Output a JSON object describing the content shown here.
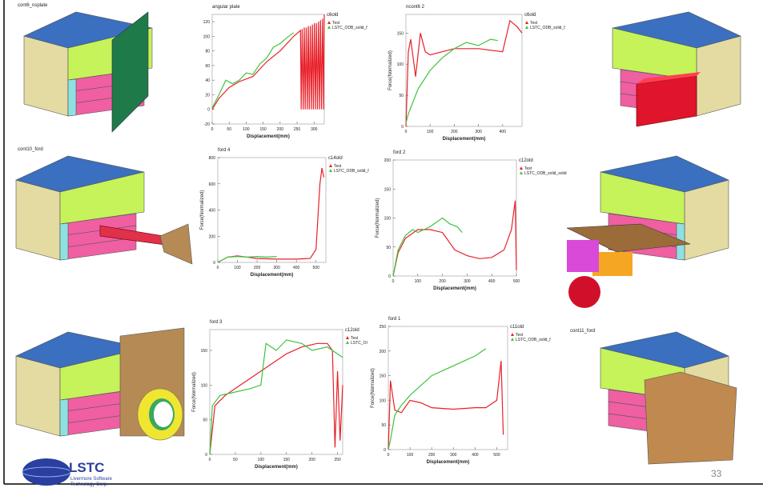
{
  "panels": [
    "cont6_nsplate",
    "cont10_ford",
    "cont11_ford"
  ],
  "logo": {
    "name": "LSTC",
    "line1": "Livermore Software",
    "line2": "Technology Corp."
  },
  "page_number": "33",
  "chart_data": [
    {
      "type": "line",
      "title": "angular plate",
      "tag": "c6old",
      "xlabel": "Displacement(mm)",
      "xlim": [
        0,
        330
      ],
      "xticks": [
        0,
        50,
        100,
        150,
        200,
        250,
        300
      ],
      "ylim": [
        -20,
        130
      ],
      "yticks": [
        -20,
        0,
        20,
        40,
        60,
        80,
        100,
        120
      ],
      "series": [
        {
          "name": "Test",
          "color": "#e8202a",
          "x": [
            0,
            20,
            50,
            80,
            120,
            160,
            200,
            240,
            260,
            262,
            265,
            268,
            271,
            274,
            277,
            280,
            283,
            286,
            289,
            292,
            295,
            298,
            301,
            304,
            307,
            310,
            313,
            316,
            319,
            322,
            325,
            328,
            330
          ],
          "values": [
            0,
            15,
            30,
            38,
            45,
            65,
            80,
            100,
            108,
            0,
            110,
            0,
            112,
            0,
            112,
            0,
            114,
            0,
            114,
            0,
            116,
            0,
            118,
            0,
            118,
            0,
            120,
            0,
            122,
            0,
            124,
            0,
            130
          ]
        },
        {
          "name": "LSTC_ODB_solid_f",
          "color": "#3ec43e",
          "x": [
            0,
            20,
            40,
            60,
            80,
            100,
            120,
            140,
            160,
            180,
            200,
            220,
            240
          ],
          "values": [
            2,
            20,
            40,
            35,
            40,
            50,
            48,
            62,
            70,
            85,
            90,
            98,
            105
          ]
        }
      ]
    },
    {
      "type": "line",
      "title": "ncont6 2",
      "tag": "c6old",
      "xlabel": "Displacement(mm)",
      "ylabel": "Force(Normalized)",
      "xlim": [
        0,
        480
      ],
      "xticks": [
        0,
        100,
        200,
        300,
        400
      ],
      "ylim": [
        0,
        180
      ],
      "yticks": [
        0,
        50,
        100,
        150
      ],
      "series": [
        {
          "name": "Test",
          "color": "#e8202a",
          "x": [
            0,
            10,
            20,
            40,
            60,
            80,
            100,
            150,
            200,
            300,
            400,
            430,
            460,
            480
          ],
          "values": [
            0,
            120,
            140,
            80,
            150,
            120,
            115,
            120,
            125,
            125,
            120,
            170,
            160,
            150
          ]
        },
        {
          "name": "LSTC_ODB_solid_f",
          "color": "#3ec43e",
          "x": [
            0,
            10,
            50,
            100,
            150,
            200,
            250,
            300,
            350,
            380
          ],
          "values": [
            5,
            20,
            60,
            90,
            110,
            125,
            135,
            130,
            140,
            138
          ]
        }
      ]
    },
    {
      "type": "line",
      "title": "ford 4",
      "tag": "c14old",
      "xlabel": "Displacement(mm)",
      "ylabel": "Force(Normalized)",
      "xlim": [
        0,
        550
      ],
      "xticks": [
        0,
        100,
        200,
        300,
        400,
        500
      ],
      "ylim": [
        0,
        800
      ],
      "yticks": [
        0,
        200,
        400,
        600,
        800
      ],
      "series": [
        {
          "name": "Test",
          "color": "#e8202a",
          "x": [
            0,
            50,
            100,
            200,
            300,
            400,
            470,
            500,
            520,
            530,
            540
          ],
          "values": [
            0,
            40,
            50,
            30,
            25,
            25,
            30,
            100,
            600,
            720,
            650
          ]
        },
        {
          "name": "LSTC_ODB_solid_f",
          "color": "#3ec43e",
          "x": [
            0,
            50,
            100,
            150,
            200,
            250,
            300
          ],
          "values": [
            0,
            40,
            45,
            40,
            45,
            40,
            45
          ]
        }
      ]
    },
    {
      "type": "line",
      "title": "ford 2",
      "tag": "c12old",
      "xlabel": "Displacement(mm)",
      "ylabel": "Force(Normalized)",
      "xlim": [
        0,
        500
      ],
      "xticks": [
        0,
        100,
        200,
        300,
        400,
        500
      ],
      "ylim": [
        0,
        200
      ],
      "yticks": [
        0,
        50,
        100,
        150,
        200
      ],
      "series": [
        {
          "name": "Test",
          "color": "#e8202a",
          "x": [
            0,
            20,
            50,
            100,
            150,
            200,
            250,
            300,
            350,
            400,
            450,
            480,
            495,
            500
          ],
          "values": [
            0,
            40,
            65,
            80,
            80,
            75,
            45,
            35,
            30,
            32,
            45,
            80,
            130,
            10
          ]
        },
        {
          "name": "LSTC_ODB_solid_solid",
          "color": "#3ec43e",
          "x": [
            0,
            20,
            50,
            80,
            100,
            150,
            200,
            230,
            260,
            280
          ],
          "values": [
            0,
            45,
            70,
            80,
            75,
            85,
            100,
            90,
            85,
            75
          ]
        }
      ]
    },
    {
      "type": "line",
      "title": "ford 3",
      "tag": "c12old",
      "xlabel": "Displacement(mm)",
      "ylabel": "Force(Normalized)",
      "xlim": [
        0,
        260
      ],
      "xticks": [
        0,
        50,
        100,
        150,
        200,
        250
      ],
      "ylim": [
        0,
        180
      ],
      "yticks": [
        0,
        50,
        100,
        150
      ],
      "series": [
        {
          "name": "Test",
          "color": "#e8202a",
          "x": [
            0,
            10,
            30,
            60,
            90,
            120,
            150,
            180,
            210,
            230,
            240,
            245,
            250,
            255,
            260
          ],
          "values": [
            0,
            70,
            85,
            100,
            115,
            130,
            145,
            155,
            160,
            160,
            150,
            10,
            120,
            20,
            100
          ]
        },
        {
          "name": "LSTC_OI",
          "color": "#3ec43e",
          "x": [
            0,
            5,
            20,
            50,
            80,
            100,
            110,
            130,
            150,
            180,
            200,
            230,
            260
          ],
          "values": [
            0,
            70,
            85,
            90,
            95,
            100,
            160,
            150,
            165,
            160,
            150,
            155,
            140
          ]
        }
      ]
    },
    {
      "type": "line",
      "title": "ford 1",
      "tag": "c11old",
      "xlabel": "Displacement(mm)",
      "ylabel": "Force(Normalized)",
      "xlim": [
        0,
        550
      ],
      "xticks": [
        0,
        100,
        200,
        300,
        400,
        500
      ],
      "ylim": [
        0,
        250
      ],
      "yticks": [
        0,
        50,
        100,
        150,
        200,
        250
      ],
      "series": [
        {
          "name": "Test",
          "color": "#e8202a",
          "x": [
            0,
            10,
            30,
            60,
            100,
            150,
            200,
            300,
            400,
            450,
            500,
            520,
            530
          ],
          "values": [
            0,
            140,
            80,
            75,
            100,
            95,
            85,
            82,
            85,
            85,
            100,
            180,
            30
          ]
        },
        {
          "name": "LSTC_ODB_solid_f",
          "color": "#3ec43e",
          "x": [
            0,
            10,
            30,
            60,
            100,
            150,
            200,
            250,
            300,
            350,
            400,
            450
          ],
          "values": [
            0,
            20,
            70,
            90,
            110,
            130,
            150,
            160,
            170,
            180,
            190,
            205
          ]
        }
      ]
    }
  ]
}
